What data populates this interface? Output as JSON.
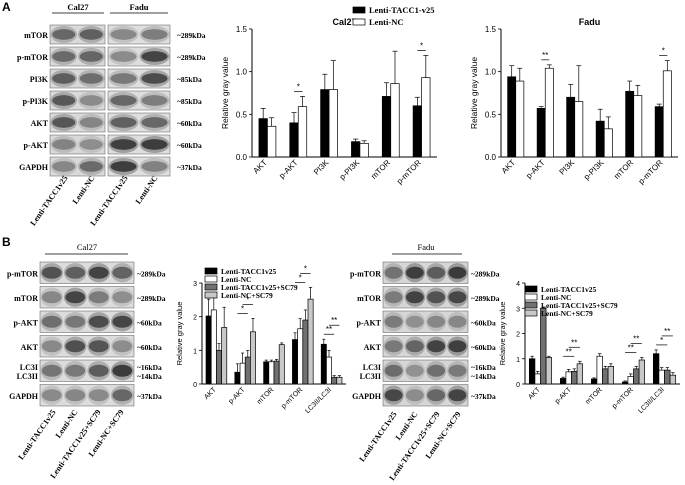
{
  "panel_labels": [
    "A",
    "B"
  ],
  "blot_A": {
    "headers": [
      "Cal27",
      "Fadu"
    ],
    "rows": [
      {
        "name": "mTOR",
        "kda": "~289kDa"
      },
      {
        "name": "p-mTOR",
        "kda": "~289kDa"
      },
      {
        "name": "PI3K",
        "kda": "~85kDa"
      },
      {
        "name": "p-PI3K",
        "kda": "~85kDa"
      },
      {
        "name": "AKT",
        "kda": "~60kDa"
      },
      {
        "name": "p-AKT",
        "kda": "~60kDa"
      },
      {
        "name": "GAPDH",
        "kda": "~37kDa"
      }
    ],
    "lanes": [
      "Lenti-TACC1v25",
      "Lenti-NC",
      "Lenti-TACC1v25",
      "Lenti-NC"
    ]
  },
  "blot_B1": {
    "header": "Cal27",
    "rows": [
      {
        "name": "p-mTOR",
        "kda": "~289kDa"
      },
      {
        "name": "mTOR",
        "kda": "~289kDa"
      },
      {
        "name": "p-AKT",
        "kda": "~60kDa"
      },
      {
        "name": "AKT",
        "kda": "~60kDa"
      },
      {
        "name": "LC3I\nLC3II",
        "kda": "~16kDa\n~14kDa"
      },
      {
        "name": "GAPDH",
        "kda": "~37kDa"
      }
    ],
    "lanes": [
      "Lenti-TACC1v25",
      "Lenti-NC",
      "Lenti-TACC1v25+SC79",
      "Lenti-NC+SC79"
    ]
  },
  "blot_B2": {
    "header": "Fadu",
    "rows": [
      {
        "name": "p-mTOR",
        "kda": "~289kDa"
      },
      {
        "name": "mTOR",
        "kda": "~289kDa"
      },
      {
        "name": "p-AKT",
        "kda": "~60kDa"
      },
      {
        "name": "AKT",
        "kda": "~60kDa"
      },
      {
        "name": "LC3I\nLC3II",
        "kda": "~16kDa\n~14kDa"
      },
      {
        "name": "GAPDH",
        "kda": "~37kDa"
      }
    ],
    "lanes": [
      "Lenti-TACC1v25",
      "Lenti-NC",
      "Lenti-TACC1v25+SC79",
      "Lenti-NC+SC79"
    ]
  },
  "legend_A": [
    "Lenti-TACC1-v25",
    "Lenti-NC"
  ],
  "legend_B": [
    "Lenti-TACC1v25",
    "Lenti-NC",
    "Lenti-TACC1v25+SC79",
    "Lenti-NC+SC79"
  ],
  "chart_data": [
    {
      "type": "bar",
      "title": "Cal27",
      "ylabel": "Relative gray value",
      "ylim": [
        0,
        1.5
      ],
      "yticks": [
        "0.0",
        "0.5",
        "1.0",
        "1.5"
      ],
      "categories": [
        "AKT",
        "p-AKT",
        "PI3K",
        "p-PI3K",
        "mTOR",
        "p-mTOR"
      ],
      "series": [
        {
          "name": "Lenti-TACC1-v25",
          "values": [
            0.45,
            0.4,
            0.79,
            0.18,
            0.71,
            0.6
          ],
          "errors": [
            0.12,
            0.12,
            0.18,
            0.03,
            0.16,
            0.1
          ]
        },
        {
          "name": "Lenti-NC",
          "values": [
            0.36,
            0.59,
            0.79,
            0.16,
            0.86,
            0.93
          ],
          "errors": [
            0.1,
            0.12,
            0.34,
            0.03,
            0.38,
            0.26
          ]
        }
      ],
      "significance": [
        {
          "category": "p-AKT",
          "label": "*"
        },
        {
          "category": "p-mTOR",
          "label": "*"
        }
      ]
    },
    {
      "type": "bar",
      "title": "Fadu",
      "ylabel": "Relative gray value",
      "ylim": [
        0,
        1.5
      ],
      "yticks": [
        "0.0",
        "0.5",
        "1.0",
        "1.5"
      ],
      "categories": [
        "AKT",
        "p-AKT",
        "PI3K",
        "p-PI3K",
        "mTOR",
        "p-mTOR"
      ],
      "series": [
        {
          "name": "Lenti-TACC1-v25",
          "values": [
            0.94,
            0.57,
            0.7,
            0.42,
            0.77,
            0.59
          ],
          "errors": [
            0.13,
            0.02,
            0.15,
            0.14,
            0.12,
            0.03
          ]
        },
        {
          "name": "Lenti-NC",
          "values": [
            0.89,
            1.04,
            0.65,
            0.33,
            0.72,
            1.01
          ],
          "errors": [
            0.15,
            0.04,
            0.42,
            0.14,
            0.12,
            0.12
          ]
        }
      ],
      "significance": [
        {
          "category": "p-AKT",
          "label": "**"
        },
        {
          "category": "p-mTOR",
          "label": "*"
        }
      ]
    },
    {
      "type": "bar",
      "title": "",
      "ylabel": "Relative gray value",
      "ylim": [
        0,
        3
      ],
      "yticks": [
        "0",
        "1",
        "2",
        "3"
      ],
      "categories": [
        "AKT",
        "p-AKT",
        "mTOR",
        "p-mTOR",
        "LC3II/LC3I"
      ],
      "series": [
        {
          "name": "Lenti-TACC1v25",
          "values": [
            2.02,
            0.35,
            0.66,
            1.32,
            1.18
          ],
          "errors": [
            0.5,
            0.25,
            0.05,
            0.2,
            0.15
          ]
        },
        {
          "name": "Lenti-NC",
          "values": [
            2.2,
            0.62,
            0.66,
            1.64,
            0.8
          ],
          "errors": [
            0.5,
            0.3,
            0.05,
            0.3,
            0.2
          ]
        },
        {
          "name": "Lenti-TACC1v25+SC79",
          "values": [
            1.0,
            0.8,
            0.68,
            1.9,
            0.2
          ],
          "errors": [
            0.2,
            0.2,
            0.05,
            0.3,
            0.05
          ]
        },
        {
          "name": "Lenti-NC+SC79",
          "values": [
            1.68,
            1.55,
            1.17,
            2.52,
            0.2
          ],
          "errors": [
            0.6,
            0.4,
            0.05,
            0.35,
            0.05
          ]
        }
      ],
      "significance": [
        {
          "category": "p-AKT",
          "label": "*"
        },
        {
          "category": "p-AKT",
          "label": "*"
        },
        {
          "category": "p-mTOR",
          "label": "*"
        },
        {
          "category": "p-mTOR",
          "label": "*"
        },
        {
          "category": "LC3II/LC3I",
          "label": "**"
        },
        {
          "category": "LC3II/LC3I",
          "label": "**"
        }
      ]
    },
    {
      "type": "bar",
      "title": "",
      "ylabel": "Relative gray value",
      "ylim": [
        0,
        4
      ],
      "yticks": [
        "0",
        "1",
        "2",
        "3",
        "4"
      ],
      "categories": [
        "AKT",
        "p-AKT",
        "mTOR",
        "p-mTOR",
        "LC3II/LC3I"
      ],
      "series": [
        {
          "name": "Lenti-TACC1v25",
          "values": [
            1.0,
            0.22,
            0.2,
            0.08,
            1.2
          ],
          "errors": [
            0.1,
            0.05,
            0.04,
            0.04,
            0.15
          ]
        },
        {
          "name": "Lenti-NC",
          "values": [
            0.4,
            0.48,
            1.1,
            0.3,
            0.55
          ],
          "errors": [
            0.1,
            0.1,
            0.1,
            0.1,
            0.1
          ]
        },
        {
          "name": "Lenti-TACC1v25+SC79",
          "values": [
            3.0,
            0.5,
            0.6,
            0.6,
            0.55
          ],
          "errors": [
            0.05,
            0.1,
            0.1,
            0.1,
            0.1
          ]
        },
        {
          "name": "Lenti-NC+SC79",
          "values": [
            1.05,
            0.8,
            0.7,
            0.95,
            0.35
          ],
          "errors": [
            0.05,
            0.1,
            0.1,
            0.1,
            0.1
          ]
        }
      ],
      "significance": [
        {
          "category": "p-AKT",
          "label": "**"
        },
        {
          "category": "p-AKT",
          "label": "**"
        },
        {
          "category": "p-mTOR",
          "label": "**"
        },
        {
          "category": "p-mTOR",
          "label": "**"
        },
        {
          "category": "LC3II/LC3I",
          "label": "*"
        },
        {
          "category": "LC3II/LC3I",
          "label": "**"
        }
      ]
    }
  ]
}
